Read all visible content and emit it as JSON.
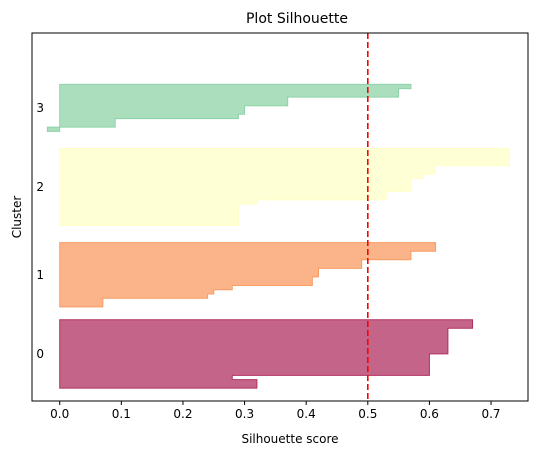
{
  "chart_data": {
    "type": "area",
    "title": "Plot Silhouette",
    "xlabel": "Silhouette score",
    "ylabel": "Cluster",
    "xlim": [
      -0.045,
      0.76
    ],
    "x_ticks": [
      "0.0",
      "0.1",
      "0.2",
      "0.3",
      "0.4",
      "0.5",
      "0.6",
      "0.7"
    ],
    "x_tick_values": [
      0.0,
      0.1,
      0.2,
      0.3,
      0.4,
      0.5,
      0.6,
      0.7
    ],
    "grid": false,
    "threshold": {
      "value": 0.5,
      "color": "#ff0000",
      "style": "dashed"
    },
    "series": [
      {
        "label": "0",
        "color": "#b03060",
        "bottom": 0,
        "values": [
          0.32,
          0.32,
          0.28,
          0.6,
          0.6,
          0.6,
          0.6,
          0.6,
          0.63,
          0.63,
          0.63,
          0.63,
          0.63,
          0.63,
          0.67,
          0.67
        ]
      },
      {
        "label": "1",
        "color": "#f99b63",
        "bottom": 19,
        "values": [
          0.07,
          0.07,
          0.24,
          0.25,
          0.28,
          0.41,
          0.41,
          0.42,
          0.42,
          0.49,
          0.49,
          0.57,
          0.57,
          0.61,
          0.61
        ]
      },
      {
        "label": "2",
        "color": "#ffffc8",
        "bottom": 38,
        "values": [
          0.29,
          0.29,
          0.29,
          0.29,
          0.29,
          0.32,
          0.53,
          0.53,
          0.57,
          0.57,
          0.57,
          0.59,
          0.61,
          0.61,
          0.73,
          0.73,
          0.73,
          0.73
        ]
      },
      {
        "label": "3",
        "color": "#8dd3a7",
        "bottom": 60,
        "values": [
          -0.02,
          0.09,
          0.09,
          0.29,
          0.3,
          0.3,
          0.37,
          0.37,
          0.55,
          0.55,
          0.57
        ]
      }
    ]
  }
}
